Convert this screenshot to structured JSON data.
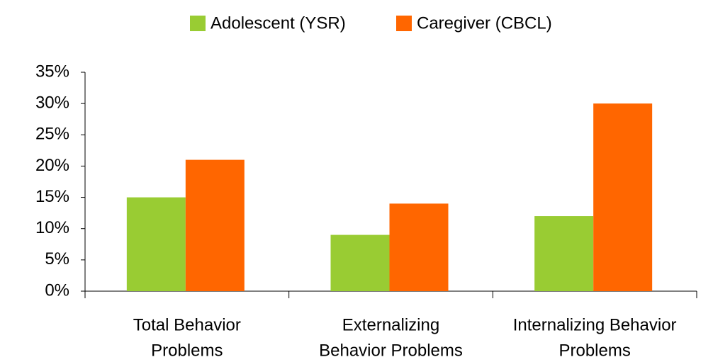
{
  "chart_data": {
    "type": "bar",
    "categories": [
      [
        "Total Behavior",
        "Problems"
      ],
      [
        "Externalizing",
        "Behavior Problems"
      ],
      [
        "Internalizing Behavior",
        "Problems"
      ]
    ],
    "series": [
      {
        "name": "Adolescent (YSR)",
        "color": "#99cc33",
        "values": [
          15,
          9,
          12
        ]
      },
      {
        "name": "Caregiver (CBCL)",
        "color": "#ff6600",
        "values": [
          21,
          14,
          30
        ]
      }
    ],
    "ylim": [
      0,
      35
    ],
    "yticks": [
      {
        "value": 0,
        "label": "0%"
      },
      {
        "value": 5,
        "label": "5%"
      },
      {
        "value": 10,
        "label": "10%"
      },
      {
        "value": 15,
        "label": "15%"
      },
      {
        "value": 20,
        "label": "20%"
      },
      {
        "value": 25,
        "label": "25%"
      },
      {
        "value": 30,
        "label": "30%"
      },
      {
        "value": 35,
        "label": "35%"
      }
    ],
    "legend": "top",
    "grid": false
  }
}
